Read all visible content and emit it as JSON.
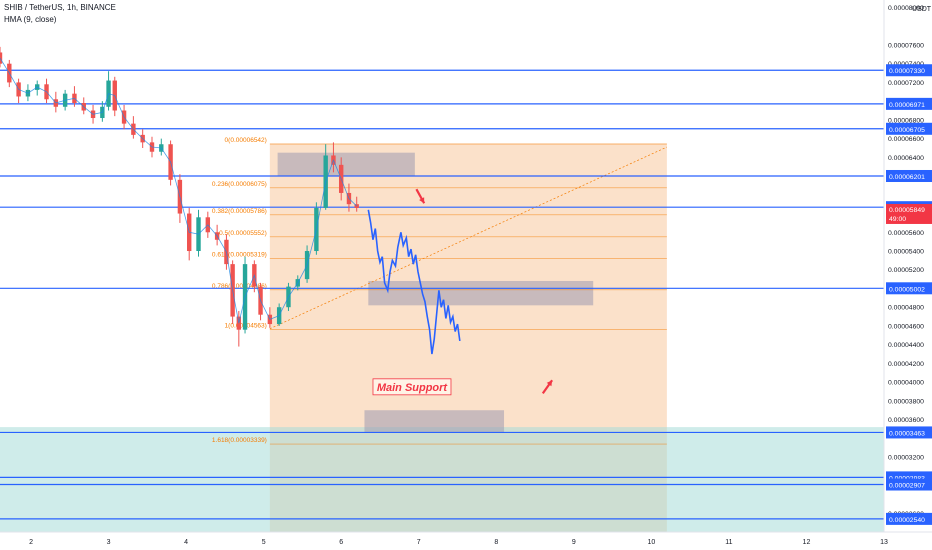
{
  "header": {
    "symbol_line": "SHIB / TetherUS, 1h, BINANCE",
    "indicator_line": "HMA (9, close)"
  },
  "colors": {
    "up": "#26a69a",
    "down": "#ef5350",
    "hline": "#2962ff",
    "fib_zone": "#f7c89e",
    "support_zone": "#a8dcd9",
    "box_gray": "#9e9bb0",
    "projection": "#2962ff",
    "fib_text": "#f57c00",
    "arrow": "#f23645",
    "price_tag": "#f23645"
  },
  "chart_data": {
    "type": "candlestick",
    "quote_unit": "USDT",
    "y_axis": {
      "range": [
        2.4e-05,
        8.08e-05
      ],
      "tick_labels": [
        "0.00008000",
        "0.00007600",
        "0.00007400",
        "0.00007200",
        "0.00006800",
        "0.00006600",
        "0.00006400",
        "0.00005600",
        "0.00005400",
        "0.00005200",
        "0.00004800",
        "0.00004600",
        "0.00004400",
        "0.00004200",
        "0.00004000",
        "0.00003800",
        "0.00003600",
        "0.00003200",
        "0.00003000",
        "0.00002600",
        "0.00002400"
      ],
      "tick_values": [
        8e-05,
        7.6e-05,
        7.4e-05,
        7.2e-05,
        6.8e-05,
        6.6e-05,
        6.4e-05,
        5.6e-05,
        5.4e-05,
        5.2e-05,
        4.8e-05,
        4.6e-05,
        4.4e-05,
        4.2e-05,
        4e-05,
        3.8e-05,
        3.6e-05,
        3.2e-05,
        3e-05,
        2.6e-05,
        2.4e-05
      ]
    },
    "x_axis": {
      "range": [
        1.6,
        13.0
      ],
      "tick_labels": [
        "2",
        "3",
        "4",
        "5",
        "6",
        "7",
        "8",
        "9",
        "10",
        "11",
        "12",
        "13"
      ],
      "tick_values": [
        2,
        3,
        4,
        5,
        6,
        7,
        8,
        9,
        10,
        11,
        12,
        13
      ]
    },
    "horizontal_levels": [
      {
        "price": 7.33e-05,
        "label": "0.00007330"
      },
      {
        "price": 6.971e-05,
        "label": "0.00006971"
      },
      {
        "price": 6.705e-05,
        "label": "0.00006705"
      },
      {
        "price": 6.201e-05,
        "label": "0.00006201"
      },
      {
        "price": 5.868e-05,
        "label": "0.00005868"
      },
      {
        "price": 5.002e-05,
        "label": "0.00005002"
      },
      {
        "price": 3.463e-05,
        "label": "0.00003463"
      },
      {
        "price": 2.983e-05,
        "label": "0.00002983"
      },
      {
        "price": 2.907e-05,
        "label": "0.00002907"
      },
      {
        "price": 2.54e-05,
        "label": "0.00002540"
      }
    ],
    "last_price": {
      "label": "0.00005849",
      "countdown": "49:00",
      "price": 5.849e-05
    },
    "fibonacci": {
      "x_start": 5.08,
      "x_end": 10.2,
      "levels": [
        {
          "ratio": "0",
          "price": 6.542e-05
        },
        {
          "ratio": "0.236",
          "price": 6.075e-05
        },
        {
          "ratio": "0.382",
          "price": 5.786e-05
        },
        {
          "ratio": "0.5",
          "price": 5.552e-05
        },
        {
          "ratio": "0.618",
          "price": 5.319e-05
        },
        {
          "ratio": "0.786",
          "price": 4.986e-05
        },
        {
          "ratio": "1",
          "price": 4.563e-05
        },
        {
          "ratio": "1.618",
          "price": 3.339e-05
        }
      ]
    },
    "zones": [
      {
        "name": "fib-zone",
        "x": [
          5.08,
          10.2
        ],
        "y": [
          2.4e-05,
          6.55e-05
        ]
      },
      {
        "name": "support-zone",
        "x": [
          1.6,
          13.0
        ],
        "y": [
          2.4e-05,
          3.52e-05
        ]
      }
    ],
    "boxes": [
      {
        "x": [
          5.18,
          6.95
        ],
        "y": [
          6.2e-05,
          6.45e-05
        ]
      },
      {
        "x": [
          6.35,
          9.25
        ],
        "y": [
          4.82e-05,
          5.08e-05
        ]
      },
      {
        "x": [
          6.3,
          8.1
        ],
        "y": [
          3.46e-05,
          3.7e-05
        ]
      }
    ],
    "annotation": {
      "text": "Main Support",
      "x": 6.9,
      "price": 3.95e-05
    },
    "arrows": [
      {
        "from": [
          6.97,
          6.06e-05
        ],
        "to": [
          7.07,
          5.91e-05
        ]
      },
      {
        "from": [
          8.6,
          3.88e-05
        ],
        "to": [
          8.72,
          4.02e-05
        ]
      }
    ],
    "trend_line": {
      "from": [
        5.08,
        4.57e-05
      ],
      "to": [
        10.2,
        6.51e-05
      ]
    },
    "candles": [
      {
        "t": 1.6,
        "o": 7.52,
        "h": 7.58,
        "l": 7.36,
        "c": 7.4
      },
      {
        "t": 1.72,
        "o": 7.4,
        "h": 7.44,
        "l": 7.15,
        "c": 7.2
      },
      {
        "t": 1.84,
        "o": 7.2,
        "h": 7.24,
        "l": 6.98,
        "c": 7.05
      },
      {
        "t": 1.96,
        "o": 7.05,
        "h": 7.18,
        "l": 7.0,
        "c": 7.12
      },
      {
        "t": 2.08,
        "o": 7.12,
        "h": 7.22,
        "l": 7.06,
        "c": 7.18
      },
      {
        "t": 2.2,
        "o": 7.18,
        "h": 7.24,
        "l": 6.98,
        "c": 7.02
      },
      {
        "t": 2.32,
        "o": 7.02,
        "h": 7.1,
        "l": 6.88,
        "c": 6.94
      },
      {
        "t": 2.44,
        "o": 6.94,
        "h": 7.12,
        "l": 6.9,
        "c": 7.08
      },
      {
        "t": 2.56,
        "o": 7.08,
        "h": 7.16,
        "l": 6.94,
        "c": 6.98
      },
      {
        "t": 2.68,
        "o": 6.98,
        "h": 7.04,
        "l": 6.86,
        "c": 6.9
      },
      {
        "t": 2.8,
        "o": 6.9,
        "h": 6.96,
        "l": 6.76,
        "c": 6.82
      },
      {
        "t": 2.92,
        "o": 6.82,
        "h": 7.0,
        "l": 6.78,
        "c": 6.94
      },
      {
        "t": 3.0,
        "o": 6.94,
        "h": 7.32,
        "l": 6.9,
        "c": 7.22
      },
      {
        "t": 3.08,
        "o": 7.22,
        "h": 7.26,
        "l": 6.84,
        "c": 6.9
      },
      {
        "t": 3.2,
        "o": 6.9,
        "h": 6.96,
        "l": 6.7,
        "c": 6.76
      },
      {
        "t": 3.32,
        "o": 6.76,
        "h": 6.84,
        "l": 6.6,
        "c": 6.64
      },
      {
        "t": 3.44,
        "o": 6.64,
        "h": 6.7,
        "l": 6.5,
        "c": 6.56
      },
      {
        "t": 3.56,
        "o": 6.56,
        "h": 6.62,
        "l": 6.4,
        "c": 6.46
      },
      {
        "t": 3.68,
        "o": 6.46,
        "h": 6.6,
        "l": 6.42,
        "c": 6.54
      },
      {
        "t": 3.8,
        "o": 6.54,
        "h": 6.58,
        "l": 6.1,
        "c": 6.16
      },
      {
        "t": 3.92,
        "o": 6.16,
        "h": 6.22,
        "l": 5.7,
        "c": 5.8
      },
      {
        "t": 4.04,
        "o": 5.8,
        "h": 5.86,
        "l": 5.3,
        "c": 5.4
      },
      {
        "t": 4.16,
        "o": 5.4,
        "h": 5.84,
        "l": 5.34,
        "c": 5.76
      },
      {
        "t": 4.28,
        "o": 5.76,
        "h": 5.82,
        "l": 5.54,
        "c": 5.6
      },
      {
        "t": 4.4,
        "o": 5.6,
        "h": 5.68,
        "l": 5.46,
        "c": 5.52
      },
      {
        "t": 4.52,
        "o": 5.52,
        "h": 5.58,
        "l": 5.2,
        "c": 5.26
      },
      {
        "t": 4.6,
        "o": 5.26,
        "h": 5.3,
        "l": 4.62,
        "c": 4.7
      },
      {
        "t": 4.68,
        "o": 4.7,
        "h": 4.76,
        "l": 4.38,
        "c": 4.56
      },
      {
        "t": 4.76,
        "o": 4.56,
        "h": 5.34,
        "l": 4.52,
        "c": 5.26
      },
      {
        "t": 4.88,
        "o": 5.26,
        "h": 5.3,
        "l": 4.96,
        "c": 5.02
      },
      {
        "t": 4.96,
        "o": 5.02,
        "h": 5.06,
        "l": 4.66,
        "c": 4.72
      },
      {
        "t": 5.08,
        "o": 4.72,
        "h": 4.8,
        "l": 4.58,
        "c": 4.62
      },
      {
        "t": 5.2,
        "o": 4.62,
        "h": 4.84,
        "l": 4.6,
        "c": 4.8
      },
      {
        "t": 5.32,
        "o": 4.8,
        "h": 5.06,
        "l": 4.76,
        "c": 5.02
      },
      {
        "t": 5.44,
        "o": 5.02,
        "h": 5.14,
        "l": 4.98,
        "c": 5.1
      },
      {
        "t": 5.56,
        "o": 5.1,
        "h": 5.46,
        "l": 5.06,
        "c": 5.4
      },
      {
        "t": 5.68,
        "o": 5.4,
        "h": 5.92,
        "l": 5.36,
        "c": 5.86
      },
      {
        "t": 5.8,
        "o": 5.86,
        "h": 6.54,
        "l": 5.84,
        "c": 6.42
      },
      {
        "t": 5.9,
        "o": 6.42,
        "h": 6.56,
        "l": 6.24,
        "c": 6.32
      },
      {
        "t": 6.0,
        "o": 6.32,
        "h": 6.4,
        "l": 5.94,
        "c": 6.02
      },
      {
        "t": 6.1,
        "o": 6.02,
        "h": 6.12,
        "l": 5.82,
        "c": 5.9
      },
      {
        "t": 6.2,
        "o": 5.9,
        "h": 5.98,
        "l": 5.82,
        "c": 5.86
      }
    ],
    "projection_path": [
      [
        6.35,
        5.84
      ],
      [
        6.38,
        5.7
      ],
      [
        6.41,
        5.52
      ],
      [
        6.44,
        5.64
      ],
      [
        6.47,
        5.4
      ],
      [
        6.5,
        5.28
      ],
      [
        6.53,
        5.34
      ],
      [
        6.56,
        5.06
      ],
      [
        6.6,
        4.98
      ],
      [
        6.63,
        5.18
      ],
      [
        6.66,
        5.3
      ],
      [
        6.7,
        5.24
      ],
      [
        6.73,
        5.44
      ],
      [
        6.77,
        5.6
      ],
      [
        6.8,
        5.46
      ],
      [
        6.84,
        5.54
      ],
      [
        6.87,
        5.34
      ],
      [
        6.9,
        5.42
      ],
      [
        6.93,
        5.26
      ],
      [
        6.96,
        5.36
      ],
      [
        6.99,
        5.18
      ],
      [
        7.02,
        5.06
      ],
      [
        7.05,
        4.94
      ],
      [
        7.08,
        4.86
      ],
      [
        7.11,
        4.7
      ],
      [
        7.14,
        4.56
      ],
      [
        7.17,
        4.3
      ],
      [
        7.2,
        4.46
      ],
      [
        7.23,
        4.72
      ],
      [
        7.26,
        4.98
      ],
      [
        7.29,
        4.8
      ],
      [
        7.32,
        4.88
      ],
      [
        7.35,
        4.68
      ],
      [
        7.38,
        4.82
      ],
      [
        7.41,
        4.64
      ],
      [
        7.44,
        4.7
      ],
      [
        7.47,
        4.54
      ],
      [
        7.5,
        4.62
      ],
      [
        7.53,
        4.44
      ]
    ]
  }
}
